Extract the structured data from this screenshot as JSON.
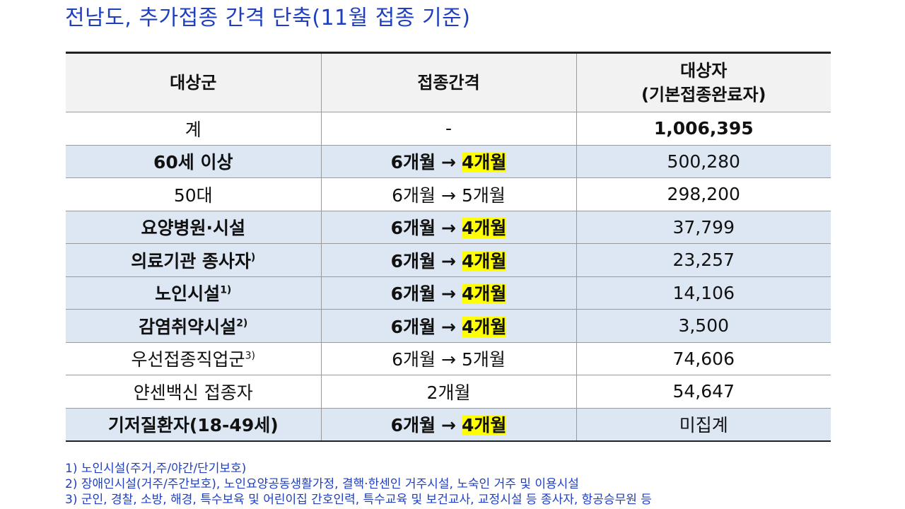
{
  "title": "전남도, 추가접종 간격 단축(11월 접종 기준)",
  "table": {
    "headers": {
      "col1": "대상군",
      "col2": "접종간격",
      "col3_line1": "대상자",
      "col3_line2": "(기본접종완료자)"
    },
    "rows": [
      {
        "group": "계",
        "sup": "",
        "interval_text": "-",
        "interval_from": "",
        "arrow": "",
        "interval_to": "",
        "count": "1,006,395",
        "bold": false,
        "highlight": false,
        "count_bold": true
      },
      {
        "group": "60세 이상",
        "sup": "",
        "interval_text": "",
        "interval_from": "6개월",
        "arrow": "→",
        "interval_to": "4개월",
        "count": "500,280",
        "bold": true,
        "highlight": true,
        "count_bold": false
      },
      {
        "group": "50대",
        "sup": "",
        "interval_text": "",
        "interval_from": "6개월",
        "arrow": "→",
        "interval_to": "5개월",
        "count": "298,200",
        "bold": false,
        "highlight": false,
        "count_bold": false
      },
      {
        "group": "요양병원·시설",
        "sup": "",
        "interval_text": "",
        "interval_from": "6개월",
        "arrow": "→",
        "interval_to": "4개월",
        "count": "37,799",
        "bold": true,
        "highlight": true,
        "count_bold": false
      },
      {
        "group": "의료기관 종사자",
        "sup": ")",
        "interval_text": "",
        "interval_from": "6개월",
        "arrow": "→",
        "interval_to": "4개월",
        "count": "23,257",
        "bold": true,
        "highlight": true,
        "count_bold": false
      },
      {
        "group": "노인시설",
        "sup": "1)",
        "interval_text": "",
        "interval_from": "6개월",
        "arrow": "→",
        "interval_to": "4개월",
        "count": "14,106",
        "bold": true,
        "highlight": true,
        "count_bold": false
      },
      {
        "group": "감염취약시설",
        "sup": "2)",
        "interval_text": "",
        "interval_from": "6개월",
        "arrow": "→",
        "interval_to": "4개월",
        "count": "3,500",
        "bold": true,
        "highlight": true,
        "count_bold": false
      },
      {
        "group": "우선접종직업군",
        "sup": "3)",
        "interval_text": "",
        "interval_from": "6개월",
        "arrow": "→",
        "interval_to": "5개월",
        "count": "74,606",
        "bold": false,
        "highlight": false,
        "count_bold": false
      },
      {
        "group": "얀센백신 접종자",
        "sup": "",
        "interval_text": "2개월",
        "interval_from": "",
        "arrow": "",
        "interval_to": "",
        "count": "54,647",
        "bold": false,
        "highlight": false,
        "count_bold": false
      },
      {
        "group": "기저질환자(18-49세)",
        "sup": "",
        "interval_text": "",
        "interval_from": "6개월",
        "arrow": "→",
        "interval_to": "4개월",
        "count": "미집계",
        "bold": true,
        "highlight": true,
        "count_bold": false
      }
    ]
  },
  "footnotes": [
    "1) 노인시설(주거,주/야간/단기보호)",
    "2) 장애인시설(거주/주간보호), 노인요양공동생활가정, 결핵·한센인 거주시설, 노숙인 거주 및 이용시설",
    "3) 군인, 경찰, 소방, 해경, 특수보육 및 어린이집 간호인력, 특수교육 및 보건교사, 교정시설 등 종사자, 항공승무원 등"
  ]
}
